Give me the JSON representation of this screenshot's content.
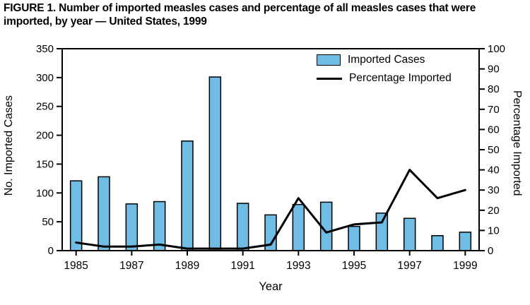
{
  "figure": {
    "title": "FIGURE 1. Number of imported measles cases and percentage of all measles cases that were imported, by year — United States, 1999"
  },
  "chart_data": {
    "type": "bar",
    "subtype": "bar-and-line-dual-axis",
    "x": [
      1985,
      1986,
      1987,
      1988,
      1989,
      1990,
      1991,
      1992,
      1993,
      1994,
      1995,
      1996,
      1997,
      1998,
      1999
    ],
    "x_tick_labels": [
      "1985",
      "1987",
      "1989",
      "1991",
      "1993",
      "1995",
      "1997",
      "1999"
    ],
    "xlabel": "Year",
    "left_axis": {
      "label": "No. Imported Cases",
      "min": 0,
      "max": 350,
      "step": 50
    },
    "right_axis": {
      "label": "Percentage Imported",
      "min": 0,
      "max": 100,
      "step": 10
    },
    "grid": false,
    "legend_position": "top-right-inside",
    "series": [
      {
        "name": "Imported Cases",
        "type": "bar",
        "axis": "left",
        "color": "#6FBCE4",
        "values": [
          121,
          128,
          81,
          85,
          190,
          301,
          82,
          62,
          80,
          84,
          42,
          65,
          56,
          26,
          32
        ]
      },
      {
        "name": "Percentage Imported",
        "type": "line",
        "axis": "right",
        "color": "#000000",
        "values": [
          4,
          2,
          2,
          3,
          1,
          1,
          1,
          3,
          26,
          9,
          13,
          14,
          40,
          26,
          30
        ]
      }
    ]
  }
}
